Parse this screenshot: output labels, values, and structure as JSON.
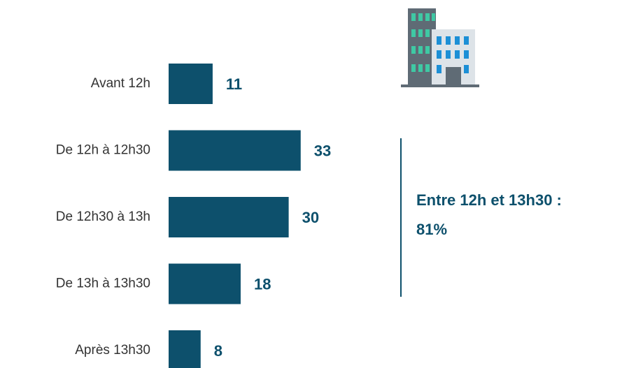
{
  "chart_data": {
    "type": "bar",
    "orientation": "horizontal",
    "categories": [
      "Avant 12h",
      "De 12h à 12h30",
      "De 12h30 à 13h",
      "De 13h à 13h30",
      "Après 13h30"
    ],
    "values": [
      11,
      33,
      30,
      18,
      8
    ],
    "color": "#0d506c",
    "annotation": [
      "Entre 12h et 13h30 :",
      "81%"
    ]
  }
}
